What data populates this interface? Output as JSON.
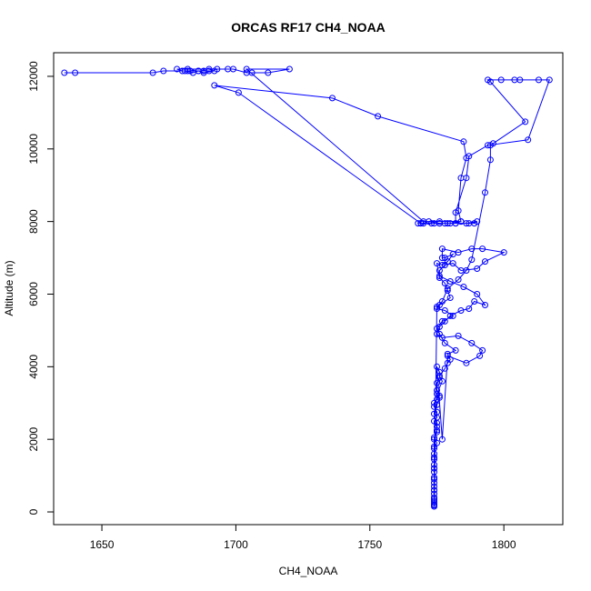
{
  "chart_data": {
    "type": "line",
    "title": "ORCAS RF17 CH4_NOAA",
    "xlabel": "CH4_NOAA",
    "ylabel": "Altitude (m)",
    "xlim": [
      1632,
      1822
    ],
    "ylim": [
      -350,
      12650
    ],
    "xticks": [
      1650,
      1700,
      1750,
      1800
    ],
    "yticks": [
      0,
      2000,
      4000,
      6000,
      8000,
      10000,
      12000
    ],
    "marker": "open-circle",
    "color": "#0000ff",
    "series": [
      {
        "points": [
          [
            1774,
            150
          ],
          [
            1774,
            200
          ],
          [
            1774,
            250
          ],
          [
            1774,
            300
          ],
          [
            1774,
            400
          ],
          [
            1774,
            500
          ],
          [
            1774,
            600
          ],
          [
            1774,
            700
          ],
          [
            1774,
            800
          ],
          [
            1774,
            950
          ],
          [
            1774,
            1100
          ],
          [
            1774,
            1200
          ],
          [
            1774,
            1300
          ],
          [
            1774,
            1450
          ],
          [
            1774,
            1600
          ],
          [
            1774,
            1750
          ],
          [
            1775,
            1900
          ],
          [
            1774,
            2050
          ],
          [
            1775,
            2200
          ],
          [
            1775,
            2350
          ],
          [
            1774,
            2500
          ],
          [
            1775,
            2600
          ],
          [
            1775,
            2750
          ],
          [
            1774,
            2900
          ],
          [
            1774,
            3000
          ],
          [
            1775,
            3100
          ],
          [
            1776,
            3200
          ],
          [
            1775,
            3350
          ],
          [
            1775,
            3550
          ],
          [
            1776,
            3700
          ],
          [
            1776,
            3850
          ],
          [
            1775,
            4000
          ],
          [
            1777,
            2000
          ],
          [
            1779,
            4300
          ],
          [
            1786,
            4100
          ],
          [
            1791,
            4300
          ],
          [
            1792,
            4450
          ],
          [
            1788,
            4650
          ],
          [
            1783,
            4850
          ],
          [
            1777,
            4800
          ],
          [
            1775,
            4900
          ],
          [
            1776,
            5100
          ],
          [
            1778,
            5250
          ],
          [
            1780,
            5400
          ],
          [
            1784,
            5550
          ],
          [
            1787,
            5600
          ],
          [
            1789,
            5800
          ],
          [
            1793,
            5700
          ],
          [
            1790,
            6000
          ],
          [
            1785,
            6200
          ],
          [
            1780,
            6350
          ],
          [
            1776,
            6500
          ],
          [
            1776,
            6650
          ],
          [
            1778,
            6800
          ],
          [
            1781,
            6850
          ],
          [
            1784,
            6650
          ],
          [
            1790,
            6700
          ],
          [
            1793,
            6900
          ],
          [
            1800,
            7150
          ],
          [
            1792,
            7250
          ],
          [
            1788,
            7250
          ],
          [
            1783,
            7150
          ],
          [
            1777,
            7250
          ],
          [
            1777,
            7000
          ],
          [
            1778,
            7000
          ],
          [
            1781,
            7100
          ],
          [
            1779,
            6900
          ],
          [
            1777,
            6800
          ],
          [
            1775,
            6850
          ],
          [
            1776,
            6450
          ],
          [
            1778,
            6300
          ],
          [
            1779,
            6100
          ],
          [
            1780,
            5900
          ],
          [
            1776,
            5700
          ],
          [
            1775,
            5600
          ],
          [
            1778,
            5550
          ],
          [
            1781,
            5400
          ],
          [
            1777,
            5250
          ],
          [
            1775,
            5050
          ],
          [
            1776,
            4900
          ],
          [
            1778,
            4650
          ],
          [
            1782,
            4450
          ],
          [
            1779,
            4350
          ],
          [
            1780,
            4200
          ],
          [
            1779,
            4100
          ],
          [
            1778,
            3950
          ],
          [
            1776,
            3750
          ],
          [
            1777,
            3600
          ],
          [
            1775,
            3250
          ],
          [
            1776,
            3150
          ],
          [
            1775,
            2950
          ],
          [
            1774,
            2700
          ],
          [
            1775,
            2450
          ],
          [
            1775,
            2250
          ],
          [
            1774,
            2000
          ],
          [
            1774,
            1800
          ],
          [
            1774,
            1500
          ],
          [
            1774,
            1200
          ],
          [
            1774,
            900
          ],
          [
            1774,
            600
          ],
          [
            1774,
            350
          ],
          [
            1774,
            180
          ],
          [
            1775,
            5650
          ],
          [
            1777,
            5800
          ],
          [
            1779,
            6150
          ],
          [
            1783,
            6400
          ],
          [
            1786,
            6650
          ],
          [
            1788,
            6950
          ],
          [
            1793,
            8800
          ],
          [
            1795,
            9700
          ],
          [
            1795,
            10100
          ],
          [
            1796,
            10150
          ],
          [
            1808,
            10750
          ],
          [
            1795,
            11850
          ],
          [
            1794,
            11900
          ],
          [
            1799,
            11900
          ],
          [
            1804,
            11900
          ],
          [
            1806,
            11900
          ],
          [
            1813,
            11900
          ],
          [
            1817,
            11900
          ],
          [
            1809,
            10250
          ],
          [
            1794,
            10100
          ],
          [
            1787,
            9800
          ],
          [
            1786,
            9200
          ],
          [
            1782,
            8250
          ],
          [
            1782,
            7950
          ],
          [
            1787,
            7950
          ],
          [
            1789,
            7950
          ],
          [
            1790,
            8000
          ],
          [
            1786,
            7950
          ],
          [
            1779,
            7950
          ],
          [
            1776,
            7950
          ],
          [
            1773,
            7950
          ],
          [
            1769,
            7950
          ],
          [
            1768,
            7950
          ],
          [
            1770,
            7950
          ],
          [
            1772,
            8000
          ],
          [
            1776,
            7950
          ],
          [
            1780,
            7950
          ],
          [
            1784,
            8000
          ],
          [
            1782,
            7950
          ],
          [
            1778,
            7950
          ],
          [
            1774,
            7950
          ],
          [
            1769,
            7950
          ],
          [
            1701,
            11550
          ],
          [
            1692,
            11750
          ],
          [
            1736,
            11400
          ],
          [
            1753,
            10900
          ],
          [
            1785,
            10200
          ],
          [
            1786,
            9750
          ],
          [
            1784,
            9200
          ],
          [
            1783,
            8300
          ],
          [
            1784,
            8000
          ],
          [
            1776,
            8000
          ],
          [
            1770,
            8000
          ],
          [
            1704,
            12200
          ],
          [
            1720,
            12200
          ],
          [
            1712,
            12100
          ],
          [
            1706,
            12100
          ],
          [
            1704,
            12100
          ],
          [
            1699,
            12200
          ],
          [
            1697,
            12200
          ],
          [
            1693,
            12200
          ],
          [
            1690,
            12150
          ],
          [
            1688,
            12150
          ],
          [
            1686,
            12150
          ],
          [
            1684,
            12100
          ],
          [
            1682,
            12150
          ],
          [
            1680,
            12150
          ],
          [
            1678,
            12200
          ],
          [
            1682,
            12200
          ],
          [
            1690,
            12200
          ],
          [
            1692,
            12150
          ],
          [
            1688,
            12100
          ],
          [
            1686,
            12150
          ],
          [
            1683,
            12150
          ],
          [
            1681,
            12150
          ],
          [
            1673,
            12150
          ],
          [
            1669,
            12100
          ],
          [
            1640,
            12100
          ],
          [
            1636,
            12100
          ]
        ]
      }
    ]
  }
}
